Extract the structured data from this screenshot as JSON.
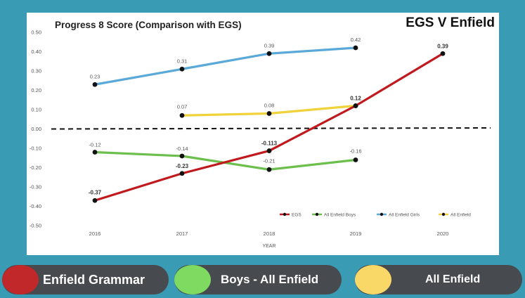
{
  "heading": "EGS V Enfield",
  "chart_data": {
    "type": "line",
    "title": "Progress 8 Score (Comparison with EGS)",
    "xlabel": "YEAR",
    "ylabel": "",
    "categories": [
      "2016",
      "2017",
      "2018",
      "2019",
      "2020"
    ],
    "ylim": [
      -0.5,
      0.5
    ],
    "yticks": [
      "0.50",
      "0.40",
      "0.30",
      "0.20",
      "0.10",
      "0.00",
      "-0.10",
      "-0.20",
      "-0.30",
      "-0.40",
      "-0.50"
    ],
    "reference_line": 0.0,
    "legend_position": "bottom-right",
    "series": [
      {
        "name": "EGS",
        "color": "#c0191e",
        "values": [
          -0.37,
          -0.23,
          -0.113,
          0.12,
          0.39
        ],
        "labels": [
          "-0.37",
          "-0.23",
          "-0.113",
          "0.12",
          "0.39"
        ],
        "bold_labels": true
      },
      {
        "name": "All Enfield Boys",
        "color": "#6cbf4c",
        "values": [
          -0.12,
          -0.14,
          -0.21,
          -0.16,
          null
        ],
        "labels": [
          "-0.12",
          "-0.14",
          "-0.21",
          "-0.16",
          ""
        ],
        "bold_labels": false
      },
      {
        "name": "All Enfield Girls",
        "color": "#5aa9d8",
        "values": [
          0.23,
          0.31,
          0.39,
          0.42,
          null
        ],
        "labels": [
          "0.23",
          "0.31",
          "0.39",
          "0.42",
          ""
        ],
        "bold_labels": false
      },
      {
        "name": "All Enfield",
        "color": "#f0d23a",
        "values": [
          null,
          0.07,
          0.08,
          0.12,
          null
        ],
        "labels": [
          "",
          "0.07",
          "0.08",
          "",
          ""
        ],
        "bold_labels": false
      }
    ]
  },
  "legend_pills": [
    {
      "label": "Enfield Grammar",
      "color": "#c0282a"
    },
    {
      "label": "Boys - All Enfield",
      "color": "#7fda62"
    },
    {
      "label": "All Enfield",
      "color": "#f9d868"
    }
  ]
}
